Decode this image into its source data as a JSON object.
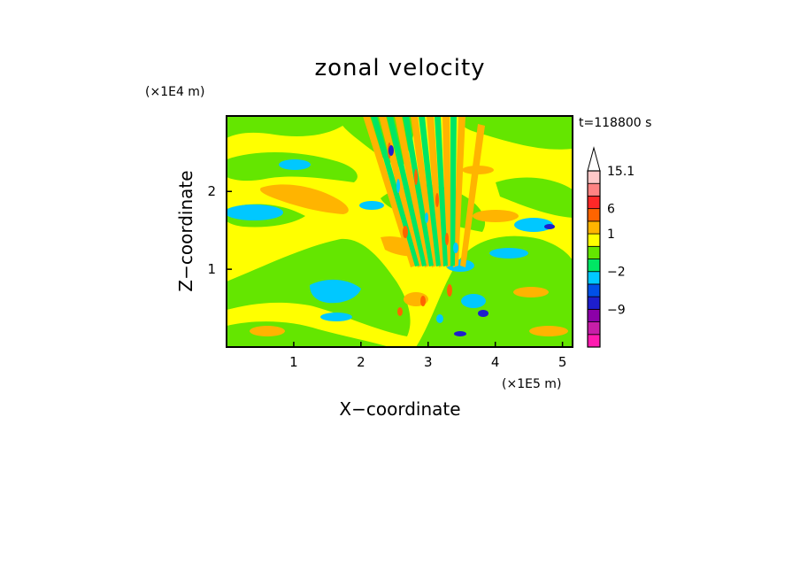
{
  "chart_data": {
    "type": "heatmap",
    "title": "zonal velocity",
    "xlabel": "X−coordinate",
    "ylabel": "Z−coordinate",
    "x_unit": "(×1E5 m)",
    "y_unit": "(×1E4 m)",
    "time_label": "t=118800 s",
    "xlim": [
      0,
      5.15
    ],
    "ylim": [
      0,
      2.97
    ],
    "x_ticks": [
      {
        "value": 1,
        "label": "1"
      },
      {
        "value": 2,
        "label": "2"
      },
      {
        "value": 3,
        "label": "3"
      },
      {
        "value": 4,
        "label": "4"
      },
      {
        "value": 5,
        "label": "5"
      }
    ],
    "y_ticks": [
      {
        "value": 1,
        "label": "1"
      },
      {
        "value": 2,
        "label": "2"
      }
    ],
    "colorbar": {
      "levels": [
        -15,
        -12,
        -9,
        -6,
        -3,
        -2,
        -1,
        0,
        1,
        3,
        6,
        9,
        12,
        15.1
      ],
      "colors": [
        "#ff1ab0",
        "#c81ea8",
        "#8c00a8",
        "#1e1ecd",
        "#0050e8",
        "#00c8ff",
        "#00e664",
        "#64e600",
        "#ffff00",
        "#ffb400",
        "#ff6400",
        "#ff2828",
        "#ff8282",
        "#ffc8c8"
      ],
      "labels": [
        {
          "value": -9,
          "label": "−9"
        },
        {
          "value": -2,
          "label": "−2"
        },
        {
          "value": 1,
          "label": "1"
        },
        {
          "value": 6,
          "label": "6"
        },
        {
          "value": 15.1,
          "label": "15.1"
        }
      ]
    },
    "grid": false,
    "legend": "colorbar-right"
  }
}
